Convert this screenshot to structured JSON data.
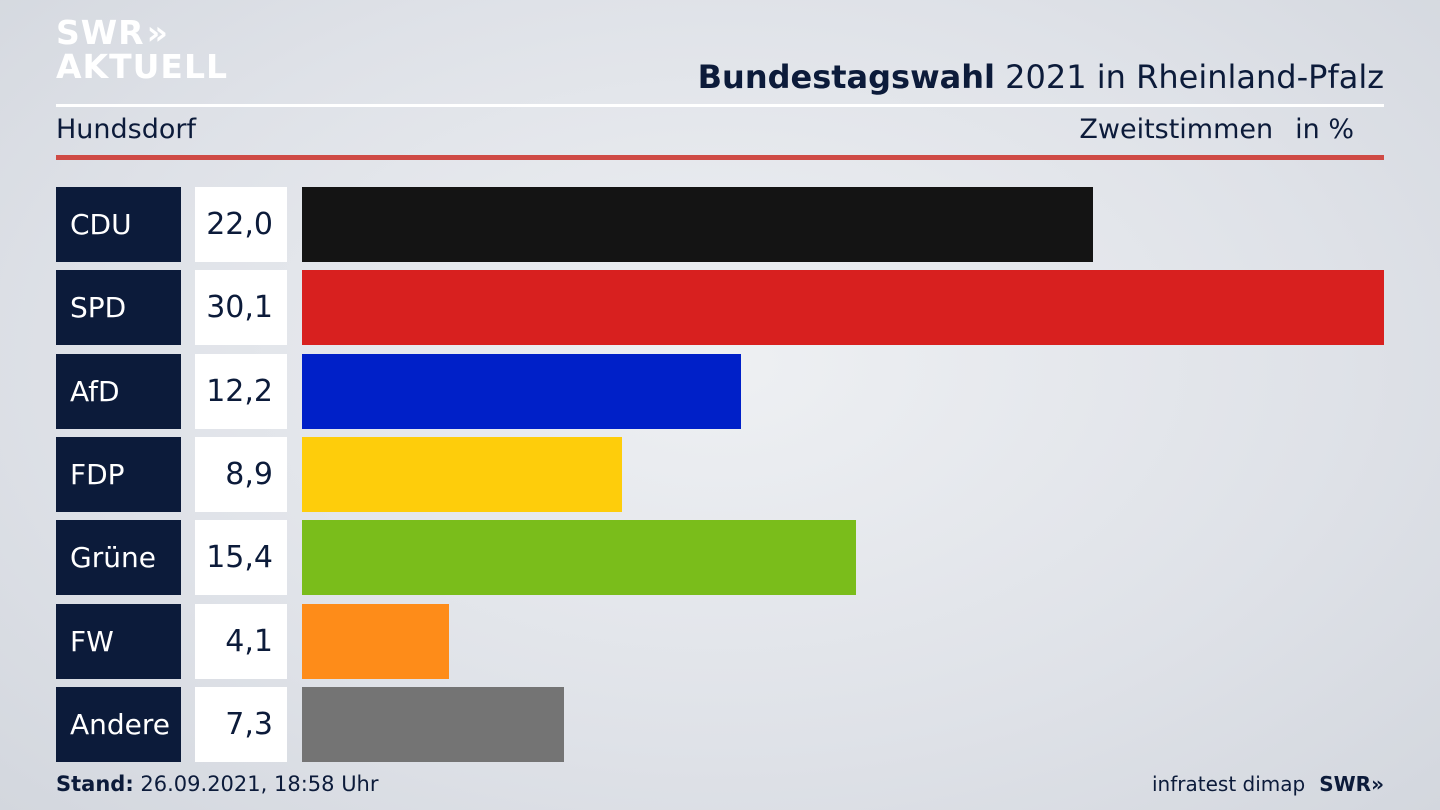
{
  "logo": {
    "line1": "SWR",
    "line1_mark": "»",
    "line2": "AKTUELL"
  },
  "header": {
    "title_bold": "Bundestagswahl",
    "title_rest": "2021 in Rheinland-Pfalz",
    "location": "Hundsdorf",
    "measure": "Zweitstimmen",
    "unit": "in %"
  },
  "chart_data": {
    "type": "bar",
    "orientation": "horizontal",
    "unit": "%",
    "categories": [
      "CDU",
      "SPD",
      "AfD",
      "FDP",
      "Grüne",
      "FW",
      "Andere"
    ],
    "values": [
      22.0,
      30.1,
      12.2,
      8.9,
      15.4,
      4.1,
      7.3
    ],
    "value_labels": [
      "22,0",
      "30,1",
      "12,2",
      "8,9",
      "15,4",
      "4,1",
      "7,3"
    ],
    "colors": [
      "#141414",
      "#d8201f",
      "#0020c8",
      "#fecd0b",
      "#7abd1b",
      "#fe8c19",
      "#747474"
    ]
  },
  "footer": {
    "stand_label": "Stand:",
    "stand_value": "26.09.2021, 18:58 Uhr",
    "source": "infratest dimap",
    "brand": "SWR»"
  }
}
